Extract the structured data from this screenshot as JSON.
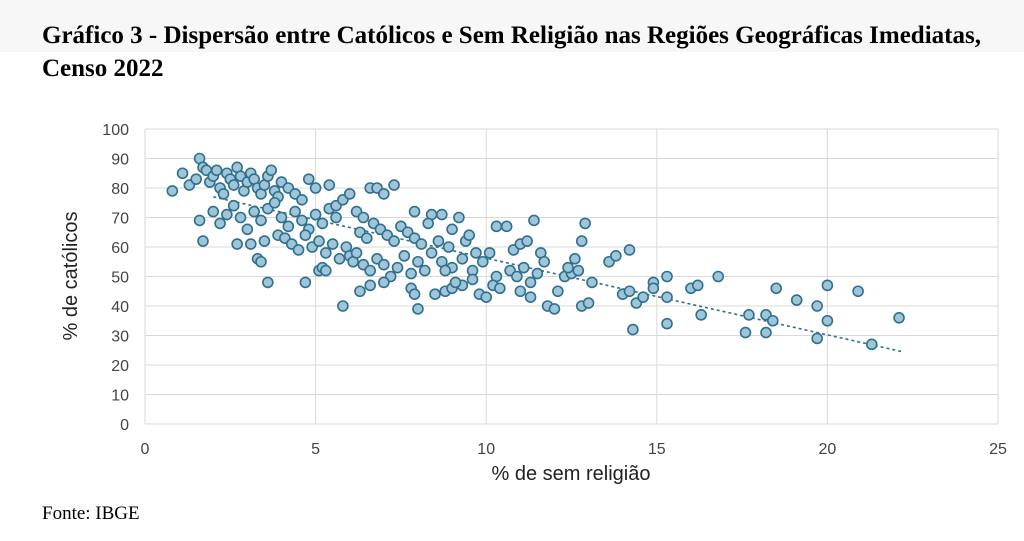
{
  "title": "Gráfico 3 - Dispersão entre Católicos e Sem Religião nas Regiões Geográficas Imediatas, Censo 2022",
  "source": "Fonte: IBGE",
  "colors": {
    "marker_fill": "#9fc6d8",
    "marker_stroke": "#2f6f8f",
    "trendline": "#2f6f8f",
    "grid": "#d9d9d9"
  },
  "chart_data": {
    "type": "scatter",
    "xlabel": "% de sem religião",
    "ylabel": "% de católicos",
    "xlim": [
      0,
      25
    ],
    "ylim": [
      0,
      100
    ],
    "x_ticks": [
      "0",
      "5",
      "10",
      "15",
      "20",
      "25"
    ],
    "y_ticks": [
      "0",
      "10",
      "20",
      "30",
      "40",
      "50",
      "60",
      "70",
      "80",
      "90",
      "100"
    ],
    "grid": true,
    "trendline": {
      "style": "dotted",
      "x": [
        2.0,
        22.2
      ],
      "y": [
        77.0,
        24.5
      ]
    },
    "points": [
      [
        0.8,
        79
      ],
      [
        1.1,
        85
      ],
      [
        1.3,
        81
      ],
      [
        1.5,
        83
      ],
      [
        1.6,
        90
      ],
      [
        1.7,
        87
      ],
      [
        1.8,
        86
      ],
      [
        1.9,
        82
      ],
      [
        2.0,
        84
      ],
      [
        2.1,
        86
      ],
      [
        2.2,
        80
      ],
      [
        2.3,
        78
      ],
      [
        2.4,
        85
      ],
      [
        2.5,
        83
      ],
      [
        2.6,
        81
      ],
      [
        2.7,
        87
      ],
      [
        2.8,
        84
      ],
      [
        2.9,
        79
      ],
      [
        3.0,
        82
      ],
      [
        3.1,
        85
      ],
      [
        3.2,
        83
      ],
      [
        3.3,
        80
      ],
      [
        3.4,
        78
      ],
      [
        3.5,
        81
      ],
      [
        3.6,
        84
      ],
      [
        3.7,
        86
      ],
      [
        3.8,
        79
      ],
      [
        3.9,
        77
      ],
      [
        4.0,
        82
      ],
      [
        4.2,
        80
      ],
      [
        4.4,
        78
      ],
      [
        4.6,
        76
      ],
      [
        4.8,
        83
      ],
      [
        5.0,
        80
      ],
      [
        1.6,
        69
      ],
      [
        1.7,
        62
      ],
      [
        2.0,
        72
      ],
      [
        2.2,
        68
      ],
      [
        2.4,
        71
      ],
      [
        2.6,
        74
      ],
      [
        2.8,
        70
      ],
      [
        3.0,
        66
      ],
      [
        3.2,
        72
      ],
      [
        3.4,
        69
      ],
      [
        3.6,
        73
      ],
      [
        3.8,
        75
      ],
      [
        4.0,
        70
      ],
      [
        4.2,
        67
      ],
      [
        4.4,
        72
      ],
      [
        4.6,
        69
      ],
      [
        4.8,
        66
      ],
      [
        5.0,
        71
      ],
      [
        5.2,
        68
      ],
      [
        5.4,
        73
      ],
      [
        5.6,
        70
      ],
      [
        2.7,
        61
      ],
      [
        3.1,
        61
      ],
      [
        3.3,
        56
      ],
      [
        3.4,
        55
      ],
      [
        3.6,
        48
      ],
      [
        3.5,
        62
      ],
      [
        3.9,
        64
      ],
      [
        4.1,
        63
      ],
      [
        4.3,
        61
      ],
      [
        4.5,
        59
      ],
      [
        4.7,
        64
      ],
      [
        4.9,
        60
      ],
      [
        5.1,
        62
      ],
      [
        5.3,
        58
      ],
      [
        5.5,
        61
      ],
      [
        4.7,
        48
      ],
      [
        5.1,
        52
      ],
      [
        5.2,
        53
      ],
      [
        5.3,
        52
      ],
      [
        5.7,
        56
      ],
      [
        5.8,
        40
      ],
      [
        5.9,
        60
      ],
      [
        6.0,
        57
      ],
      [
        6.1,
        55
      ],
      [
        6.2,
        58
      ],
      [
        5.6,
        74
      ],
      [
        5.8,
        76
      ],
      [
        6.0,
        78
      ],
      [
        6.2,
        72
      ],
      [
        6.4,
        70
      ],
      [
        6.6,
        80
      ],
      [
        6.8,
        80
      ],
      [
        5.4,
        81
      ],
      [
        7.0,
        78
      ],
      [
        7.3,
        81
      ],
      [
        6.3,
        65
      ],
      [
        6.5,
        63
      ],
      [
        6.7,
        68
      ],
      [
        6.9,
        66
      ],
      [
        7.1,
        64
      ],
      [
        7.3,
        62
      ],
      [
        7.5,
        67
      ],
      [
        7.7,
        65
      ],
      [
        7.9,
        63
      ],
      [
        8.1,
        61
      ],
      [
        6.4,
        54
      ],
      [
        6.6,
        52
      ],
      [
        6.8,
        56
      ],
      [
        7.0,
        54
      ],
      [
        7.2,
        50
      ],
      [
        7.4,
        53
      ],
      [
        7.6,
        57
      ],
      [
        7.8,
        51
      ],
      [
        8.0,
        55
      ],
      [
        8.2,
        52
      ],
      [
        6.3,
        45
      ],
      [
        6.6,
        47
      ],
      [
        7.0,
        48
      ],
      [
        7.8,
        46
      ],
      [
        7.9,
        44
      ],
      [
        8.0,
        39
      ],
      [
        8.5,
        44
      ],
      [
        8.8,
        45
      ],
      [
        9.0,
        46
      ],
      [
        9.3,
        47
      ],
      [
        7.9,
        72
      ],
      [
        8.4,
        71
      ],
      [
        8.7,
        71
      ],
      [
        9.0,
        66
      ],
      [
        9.2,
        70
      ],
      [
        8.3,
        68
      ],
      [
        8.6,
        62
      ],
      [
        8.9,
        60
      ],
      [
        9.4,
        62
      ],
      [
        9.7,
        58
      ],
      [
        8.4,
        58
      ],
      [
        8.7,
        55
      ],
      [
        9.0,
        53
      ],
      [
        9.3,
        56
      ],
      [
        9.6,
        52
      ],
      [
        9.9,
        55
      ],
      [
        10.1,
        58
      ],
      [
        10.3,
        50
      ],
      [
        9.8,
        44
      ],
      [
        10.0,
        43
      ],
      [
        10.3,
        67
      ],
      [
        10.6,
        67
      ],
      [
        10.8,
        59
      ],
      [
        11.0,
        61
      ],
      [
        11.2,
        62
      ],
      [
        11.4,
        69
      ],
      [
        11.6,
        58
      ],
      [
        10.7,
        52
      ],
      [
        10.9,
        50
      ],
      [
        11.1,
        53
      ],
      [
        11.3,
        48
      ],
      [
        11.5,
        51
      ],
      [
        11.7,
        55
      ],
      [
        11.0,
        45
      ],
      [
        11.3,
        43
      ],
      [
        11.8,
        40
      ],
      [
        12.0,
        39
      ],
      [
        12.1,
        45
      ],
      [
        12.3,
        50
      ],
      [
        12.5,
        51
      ],
      [
        12.7,
        52
      ],
      [
        12.8,
        62
      ],
      [
        12.9,
        68
      ],
      [
        12.6,
        56
      ],
      [
        12.4,
        53
      ],
      [
        12.8,
        40
      ],
      [
        13.0,
        41
      ],
      [
        13.1,
        48
      ],
      [
        13.6,
        55
      ],
      [
        13.8,
        57
      ],
      [
        14.0,
        44
      ],
      [
        14.2,
        45
      ],
      [
        14.4,
        41
      ],
      [
        14.6,
        43
      ],
      [
        14.3,
        32
      ],
      [
        14.2,
        59
      ],
      [
        14.9,
        48
      ],
      [
        14.9,
        46
      ],
      [
        15.3,
        50
      ],
      [
        15.3,
        34
      ],
      [
        15.3,
        43
      ],
      [
        16.0,
        46
      ],
      [
        16.2,
        47
      ],
      [
        16.3,
        37
      ],
      [
        16.8,
        50
      ],
      [
        17.6,
        31
      ],
      [
        17.7,
        37
      ],
      [
        18.2,
        37
      ],
      [
        18.2,
        31
      ],
      [
        18.4,
        35
      ],
      [
        18.5,
        46
      ],
      [
        19.1,
        42
      ],
      [
        19.7,
        40
      ],
      [
        19.7,
        29
      ],
      [
        20.0,
        35
      ],
      [
        20.0,
        47
      ],
      [
        20.9,
        45
      ],
      [
        21.3,
        27
      ],
      [
        22.1,
        36
      ],
      [
        9.1,
        48
      ],
      [
        10.2,
        47
      ],
      [
        9.6,
        49
      ],
      [
        8.8,
        52
      ],
      [
        9.5,
        64
      ],
      [
        10.4,
        46
      ]
    ]
  }
}
